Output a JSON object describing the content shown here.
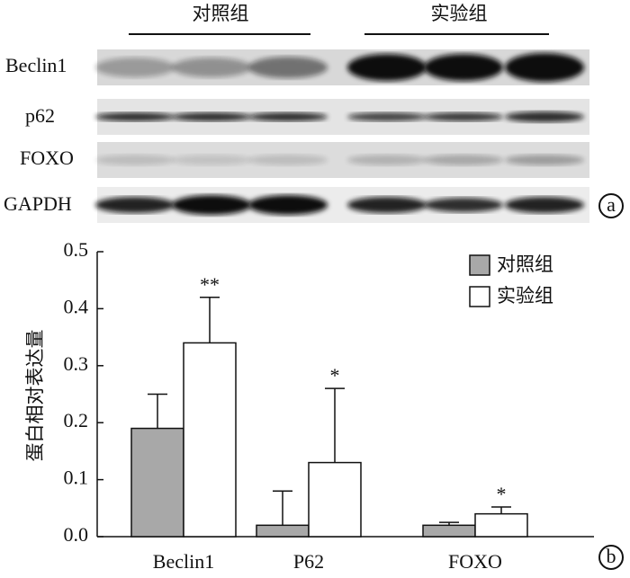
{
  "blot": {
    "groups": [
      "对照组",
      "实验组"
    ],
    "rows": [
      "Beclin1",
      "p62",
      "FOXO",
      "GAPDH"
    ],
    "panel_label": "a"
  },
  "chart_data": {
    "type": "bar",
    "panel_label": "b",
    "y_label": "蛋白相对表达量",
    "categories": [
      "Beclin1",
      "P62",
      "FOXO"
    ],
    "series": [
      {
        "name": "对照组",
        "color": "#a8a8a8",
        "values": [
          0.19,
          0.02,
          0.02
        ],
        "errors": [
          0.06,
          0.06,
          0.005
        ]
      },
      {
        "name": "实验组",
        "color": "#ffffff",
        "values": [
          0.34,
          0.13,
          0.04
        ],
        "errors": [
          0.08,
          0.13,
          0.012
        ],
        "annotations": [
          "**",
          "*",
          "*"
        ]
      }
    ],
    "ylim": [
      0,
      0.5
    ],
    "yticks": [
      {
        "value": 0,
        "label": "0.0"
      },
      0.1,
      0.2,
      0.3,
      0.4,
      0.5
    ],
    "legend": "top-right"
  }
}
